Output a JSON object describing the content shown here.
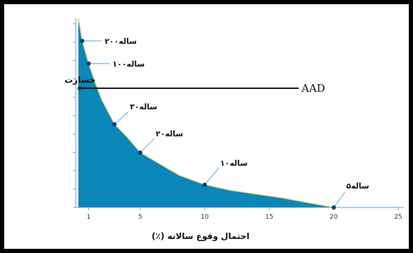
{
  "chart_data": {
    "type": "area",
    "title": "",
    "xlabel": "احتمال وقوع سالانه (٪)",
    "ylabel": "خسارت",
    "xlim": [
      0,
      25
    ],
    "ylim": [
      0,
      100
    ],
    "xticks": [
      1,
      5,
      10,
      15,
      20,
      25
    ],
    "xtick_labels": [
      "1",
      "5",
      "10",
      "15",
      "20",
      "25"
    ],
    "y_tick_count": 11,
    "y_tick_labels_shown": false,
    "grid": false,
    "series": [
      {
        "x": [
          0.2,
          0.5,
          1,
          1.5,
          2,
          3,
          4,
          5,
          6,
          7,
          8,
          10,
          12,
          14,
          16,
          18,
          20
        ],
        "y": [
          100,
          88,
          76,
          66,
          57,
          44,
          37,
          29,
          25,
          21,
          17,
          12,
          9,
          7,
          5,
          2.5,
          0
        ]
      }
    ],
    "annotations": [
      {
        "label": "۲۰۰ساله",
        "x": 0.5,
        "y": 88
      },
      {
        "label": "۱۰۰ساله",
        "x": 1,
        "y": 76
      },
      {
        "label": "۳۰ساله",
        "x": 3,
        "y": 44
      },
      {
        "label": "۲۰ساله",
        "x": 5,
        "y": 29
      },
      {
        "label": "۱۰ساله",
        "x": 10,
        "y": 12
      },
      {
        "label": "۵ساله",
        "x": 20,
        "y": 0
      }
    ],
    "aad": {
      "label": "AAD",
      "y": 63
    },
    "colors": {
      "fill": "#0b86b8",
      "curve": "#e8c84a",
      "point": "#123a6b",
      "axis": "#5aa7d6",
      "aad_line": "#111111"
    }
  }
}
